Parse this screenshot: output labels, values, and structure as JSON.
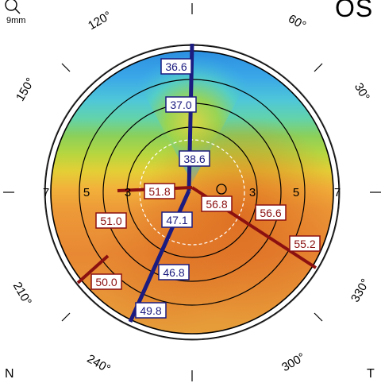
{
  "header": {
    "scale_label": "9mm",
    "eye_label": "OS"
  },
  "orientation": {
    "nasal": "N",
    "temporal": "T"
  },
  "angle_labels": [
    "120°",
    "60°",
    "150°",
    "30°",
    "210°",
    "330°",
    "240°",
    "300°"
  ],
  "ring_labels": [
    "7",
    "5",
    "3",
    "3",
    "5",
    "7"
  ],
  "meridian_values": {
    "blue": [
      "36.6",
      "37.0",
      "38.6",
      "47.1",
      "46.8",
      "49.8"
    ],
    "red": [
      "51.8",
      "56.8",
      "51.0",
      "56.6",
      "55.2",
      "50.0"
    ]
  },
  "colors": {
    "steep": "#1b1b80",
    "flat": "#8b1010",
    "top_blue": "#3aa0e6",
    "mid_green": "#8ccf3c",
    "warm_orange": "#e07828"
  },
  "icons": {
    "zoom": "magnifier-icon"
  }
}
